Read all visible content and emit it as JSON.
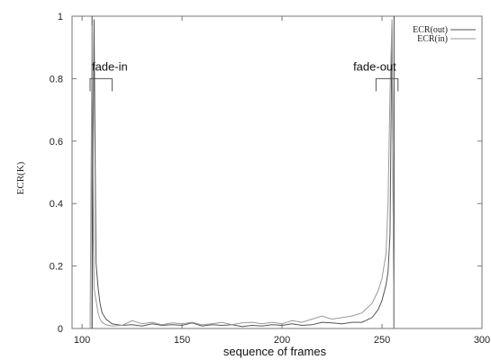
{
  "chart_data": {
    "type": "line",
    "title": "",
    "xlabel": "sequence of frames",
    "ylabel": "ECR(K)",
    "xlim": [
      95,
      300
    ],
    "ylim": [
      0,
      1
    ],
    "x_ticks": [
      100,
      150,
      200,
      250,
      300
    ],
    "y_ticks": [
      0,
      0.2,
      0.4,
      0.6,
      0.8,
      1
    ],
    "x_tick_labels": [
      "100",
      "150",
      "200",
      "250",
      "300"
    ],
    "y_tick_labels": [
      "0",
      "0.2",
      "0.4",
      "0.6",
      "0.8",
      "1"
    ],
    "grid": false,
    "legend_position": "top-right",
    "series": [
      {
        "name": "ECR(out)",
        "color": "#555555",
        "x": [
          105,
          106,
          107,
          108,
          109,
          110,
          112,
          115,
          120,
          125,
          130,
          135,
          140,
          145,
          150,
          155,
          160,
          165,
          170,
          175,
          180,
          185,
          190,
          195,
          200,
          205,
          210,
          215,
          220,
          225,
          230,
          235,
          240,
          245,
          248,
          250,
          252,
          253,
          254,
          255,
          256
        ],
        "y": [
          0,
          0.99,
          0.21,
          0.13,
          0.08,
          0.05,
          0.03,
          0.015,
          0.01,
          0.012,
          0.008,
          0.015,
          0.01,
          0.012,
          0.01,
          0.018,
          0.008,
          0.012,
          0.01,
          0.012,
          0.006,
          0.01,
          0.008,
          0.012,
          0.01,
          0.015,
          0.01,
          0.012,
          0.02,
          0.018,
          0.015,
          0.02,
          0.02,
          0.035,
          0.06,
          0.09,
          0.14,
          0.18,
          0.3,
          0.97,
          0
        ]
      },
      {
        "name": "ECR(in)",
        "color": "#999999",
        "x": [
          104,
          105,
          106,
          107,
          108,
          109,
          110,
          112,
          115,
          120,
          125,
          130,
          135,
          140,
          145,
          150,
          155,
          160,
          165,
          170,
          175,
          180,
          185,
          190,
          195,
          200,
          205,
          210,
          215,
          220,
          225,
          230,
          235,
          240,
          245,
          248,
          250,
          252,
          253,
          254,
          255,
          256
        ],
        "y": [
          0,
          0.97,
          0.13,
          0.09,
          0.05,
          0.03,
          0.02,
          0.012,
          0.008,
          0.01,
          0.025,
          0.015,
          0.02,
          0.012,
          0.018,
          0.015,
          0.02,
          0.012,
          0.015,
          0.02,
          0.012,
          0.018,
          0.02,
          0.015,
          0.02,
          0.015,
          0.025,
          0.02,
          0.03,
          0.04,
          0.03,
          0.035,
          0.04,
          0.05,
          0.08,
          0.12,
          0.16,
          0.24,
          0.4,
          0.75,
          0.99,
          0
        ]
      }
    ],
    "vertical_lines": [
      105,
      256
    ],
    "annotations": [
      {
        "text": "fade-in",
        "x_start": 104,
        "x_end": 115,
        "y": 0.8
      },
      {
        "text": "fade-out",
        "x_start": 247,
        "x_end": 258,
        "y": 0.8
      }
    ]
  }
}
